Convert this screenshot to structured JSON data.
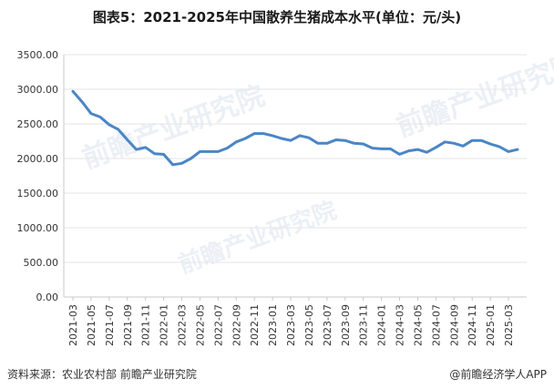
{
  "title": "图表5：2021-2025年中国散养生猪成本水平(单位：元/头)",
  "footer": {
    "source": "资料来源：农业农村部 前瞻产业研究院",
    "brand": "@前瞻经济学人APP"
  },
  "watermark": "前瞻产业研究院",
  "colors": {
    "line": "#4a86c5",
    "axis": "#c8c8c8",
    "text": "#333333"
  },
  "chart_data": {
    "type": "line",
    "ylim": [
      0,
      3500
    ],
    "yticks": [
      "0.00",
      "500.00",
      "1000.00",
      "1500.00",
      "2000.00",
      "2500.00",
      "3000.00",
      "3500.00"
    ],
    "x": [
      "2021-03",
      "2021-04",
      "2021-05",
      "2021-06",
      "2021-07",
      "2021-08",
      "2021-09",
      "2021-10",
      "2021-11",
      "2021-12",
      "2022-01",
      "2022-02",
      "2022-03",
      "2022-04",
      "2022-05",
      "2022-06",
      "2022-07",
      "2022-08",
      "2022-09",
      "2022-10",
      "2022-11",
      "2022-12",
      "2023-01",
      "2023-02",
      "2023-03",
      "2023-04",
      "2023-05",
      "2023-06",
      "2023-07",
      "2023-08",
      "2023-09",
      "2023-10",
      "2023-11",
      "2023-12",
      "2024-01",
      "2024-02",
      "2024-03",
      "2024-04",
      "2024-05",
      "2024-06",
      "2024-07",
      "2024-08",
      "2024-09",
      "2024-10",
      "2024-11",
      "2024-12",
      "2025-01",
      "2025-02",
      "2025-03",
      "2025-04"
    ],
    "xtick_labels": [
      "2021-03",
      "2021-05",
      "2021-07",
      "2021-09",
      "2021-11",
      "2022-01",
      "2022-03",
      "2022-05",
      "2022-07",
      "2022-09",
      "2022-11",
      "2023-01",
      "2023-03",
      "2023-05",
      "2023-07",
      "2023-09",
      "2023-11",
      "2024-01",
      "2024-03",
      "2024-05",
      "2024-07",
      "2024-09",
      "2024-11",
      "2025-01",
      "2025-03"
    ],
    "series": [
      {
        "values": [
          2970,
          2820,
          2650,
          2600,
          2490,
          2420,
          2270,
          2130,
          2160,
          2070,
          2060,
          1910,
          1930,
          2000,
          2100,
          2100,
          2100,
          2150,
          2240,
          2290,
          2360,
          2360,
          2330,
          2290,
          2260,
          2330,
          2300,
          2220,
          2220,
          2270,
          2260,
          2220,
          2210,
          2150,
          2140,
          2140,
          2060,
          2110,
          2130,
          2090,
          2160,
          2240,
          2220,
          2180,
          2260,
          2260,
          2210,
          2170,
          2100,
          2130
        ]
      }
    ]
  }
}
